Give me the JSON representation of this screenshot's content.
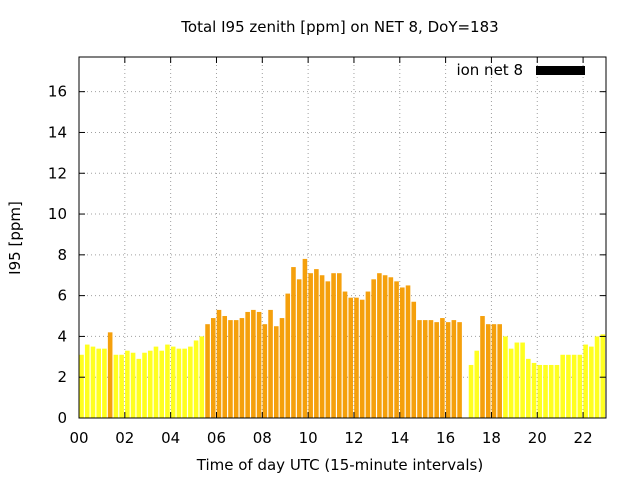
{
  "chart_data": {
    "type": "bar",
    "title": "Total I95 zenith [ppm] on NET 8, DoY=183",
    "xlabel": "Time of day UTC (15-minute intervals)",
    "ylabel": "I95 [ppm]",
    "xlim": [
      0,
      23
    ],
    "ylim": [
      0,
      17.7
    ],
    "bar_width_hours": 0.2,
    "x_ticks": [
      0,
      2,
      4,
      6,
      8,
      10,
      12,
      14,
      16,
      18,
      20,
      22
    ],
    "x_tick_labels": [
      "00",
      "02",
      "04",
      "06",
      "08",
      "10",
      "12",
      "14",
      "16",
      "18",
      "20",
      "22"
    ],
    "y_ticks": [
      0,
      2,
      4,
      6,
      8,
      10,
      12,
      14,
      16
    ],
    "y_tick_labels": [
      "0",
      "2",
      "4",
      "6",
      "8",
      "10",
      "12",
      "14",
      "16"
    ],
    "grid": true,
    "legend": {
      "position": "top-right",
      "label": "ion net 8",
      "color": "#000000"
    },
    "colors": {
      "yellow": "#ffff20",
      "orange": "#f5a00c"
    },
    "series": [
      {
        "x": [
          0.0,
          0.25,
          0.5,
          0.75,
          1.0,
          1.25,
          1.5,
          1.75,
          2.0,
          2.25,
          2.5,
          2.75,
          3.0,
          3.25,
          3.5,
          3.75,
          4.0,
          4.25,
          4.5,
          4.75,
          5.0,
          5.25,
          5.5,
          5.75,
          6.0,
          6.25,
          6.5,
          6.75,
          7.0,
          7.25,
          7.5,
          7.75,
          8.0,
          8.25,
          8.5,
          8.75,
          9.0,
          9.25,
          9.5,
          9.75,
          10.0,
          10.25,
          10.5,
          10.75,
          11.0,
          11.25,
          11.5,
          11.75,
          12.0,
          12.25,
          12.5,
          12.75,
          13.0,
          13.25,
          13.5,
          13.75,
          14.0,
          14.25,
          14.5,
          14.75,
          15.0,
          15.25,
          15.5,
          15.75,
          16.0,
          16.25,
          16.5,
          17.0,
          17.25,
          17.5,
          17.75,
          18.0,
          18.25,
          18.5,
          18.75,
          19.0,
          19.25,
          19.5,
          19.75,
          20.0,
          20.25,
          20.5,
          20.75,
          21.0,
          21.25,
          21.5,
          21.75,
          22.0,
          22.25,
          22.5,
          22.75
        ],
        "values": [
          3.1,
          3.6,
          3.5,
          3.4,
          3.4,
          4.2,
          3.1,
          3.1,
          3.3,
          3.2,
          2.9,
          3.2,
          3.3,
          3.5,
          3.3,
          3.6,
          3.5,
          3.4,
          3.4,
          3.5,
          3.8,
          4.0,
          4.6,
          4.9,
          5.3,
          5.0,
          4.8,
          4.8,
          4.9,
          5.2,
          5.3,
          5.2,
          4.6,
          5.3,
          4.5,
          4.9,
          6.1,
          7.4,
          6.8,
          7.8,
          7.1,
          7.3,
          7.0,
          6.7,
          7.1,
          7.1,
          6.2,
          5.9,
          5.9,
          5.8,
          6.2,
          6.8,
          7.1,
          7.0,
          6.9,
          6.7,
          6.4,
          6.5,
          5.7,
          4.8,
          4.8,
          4.8,
          4.7,
          4.9,
          4.7,
          4.8,
          4.7,
          2.6,
          3.3,
          5.0,
          4.6,
          4.6,
          4.6,
          4.0,
          3.4,
          3.7,
          3.7,
          2.9,
          2.7,
          2.6,
          2.6,
          2.6,
          2.6,
          3.1,
          3.1,
          3.1,
          3.1,
          3.6,
          3.5,
          4.0,
          4.1
        ],
        "colors": [
          "yellow",
          "yellow",
          "yellow",
          "yellow",
          "yellow",
          "orange",
          "yellow",
          "yellow",
          "yellow",
          "yellow",
          "yellow",
          "yellow",
          "yellow",
          "yellow",
          "yellow",
          "yellow",
          "yellow",
          "yellow",
          "yellow",
          "yellow",
          "yellow",
          "yellow",
          "orange",
          "orange",
          "orange",
          "orange",
          "orange",
          "orange",
          "orange",
          "orange",
          "orange",
          "orange",
          "orange",
          "orange",
          "orange",
          "orange",
          "orange",
          "orange",
          "orange",
          "orange",
          "orange",
          "orange",
          "orange",
          "orange",
          "orange",
          "orange",
          "orange",
          "orange",
          "orange",
          "orange",
          "orange",
          "orange",
          "orange",
          "orange",
          "orange",
          "orange",
          "orange",
          "orange",
          "orange",
          "orange",
          "orange",
          "orange",
          "orange",
          "orange",
          "orange",
          "orange",
          "orange",
          "yellow",
          "yellow",
          "orange",
          "orange",
          "orange",
          "orange",
          "yellow",
          "yellow",
          "yellow",
          "yellow",
          "yellow",
          "yellow",
          "yellow",
          "yellow",
          "yellow",
          "yellow",
          "yellow",
          "yellow",
          "yellow",
          "yellow",
          "yellow",
          "yellow",
          "yellow",
          "yellow"
        ]
      }
    ]
  }
}
